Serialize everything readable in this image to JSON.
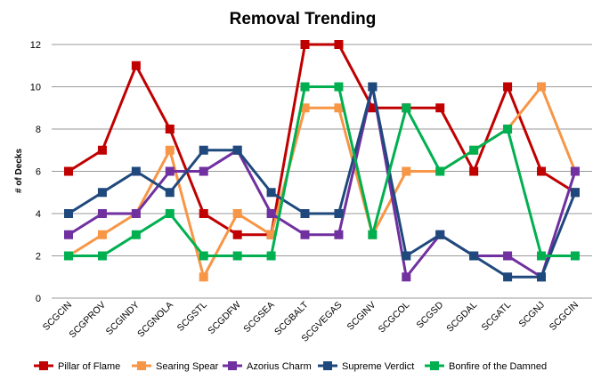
{
  "chart_data": {
    "type": "line",
    "title": "Removal Trending",
    "xlabel": "",
    "ylabel": "# of Decks",
    "ylim": [
      0,
      12
    ],
    "yticks": [
      0,
      2,
      4,
      6,
      8,
      10,
      12
    ],
    "grid": true,
    "legend_position": "bottom",
    "categories": [
      "SCGCIN",
      "SCGPROV",
      "SCGINDY",
      "SCGNOLA",
      "SCGSTL",
      "SCGDFW",
      "SCGSEA",
      "SCGBALT",
      "SCGVEGAS",
      "SCGINV",
      "SCGCOL",
      "SCGSD",
      "SCGDAL",
      "SCGATL",
      "SCGNJ",
      "SCGCIN"
    ],
    "series": [
      {
        "name": "Pillar of Flame",
        "color": "#c00000",
        "values": [
          6,
          7,
          11,
          8,
          4,
          3,
          3,
          12,
          12,
          9,
          9,
          9,
          6,
          10,
          6,
          5
        ]
      },
      {
        "name": "Searing Spear",
        "color": "#f79646",
        "values": [
          2,
          3,
          4,
          7,
          1,
          4,
          3,
          9,
          9,
          3,
          6,
          6,
          7,
          8,
          10,
          6
        ]
      },
      {
        "name": "Azorius Charm",
        "color": "#7030a0",
        "values": [
          3,
          4,
          4,
          6,
          6,
          7,
          4,
          3,
          3,
          10,
          1,
          3,
          2,
          2,
          1,
          6
        ]
      },
      {
        "name": "Supreme Verdict",
        "color": "#1f497d",
        "values": [
          4,
          5,
          6,
          5,
          7,
          7,
          5,
          4,
          4,
          10,
          2,
          3,
          2,
          1,
          1,
          5
        ]
      },
      {
        "name": "Bonfire of the Damned",
        "color": "#00b050",
        "values": [
          2,
          2,
          3,
          4,
          2,
          2,
          2,
          10,
          10,
          3,
          9,
          6,
          7,
          8,
          2,
          2
        ]
      }
    ]
  }
}
